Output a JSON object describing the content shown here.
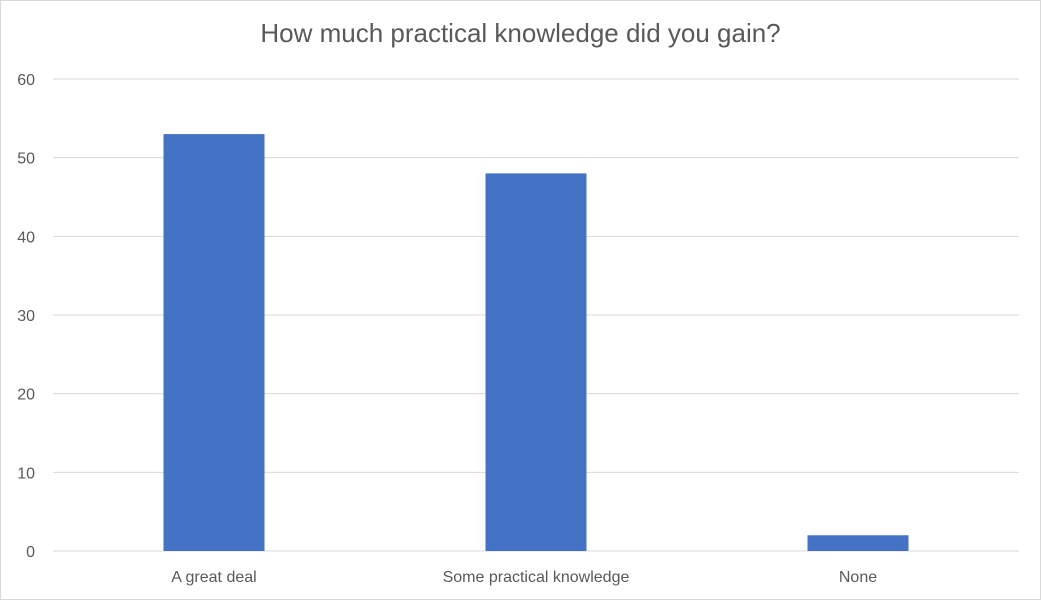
{
  "chart_data": {
    "type": "bar",
    "title": "How much practical knowledge did you gain?",
    "categories": [
      "A great deal",
      "Some practical knowledge",
      "None"
    ],
    "values": [
      53,
      48,
      2
    ],
    "ylim": [
      0,
      60
    ],
    "yticks": [
      0,
      10,
      20,
      30,
      40,
      50,
      60
    ],
    "grid": true,
    "bar_color": "#4472c4",
    "grid_color": "#d9d9d9",
    "text_color": "#595959"
  }
}
